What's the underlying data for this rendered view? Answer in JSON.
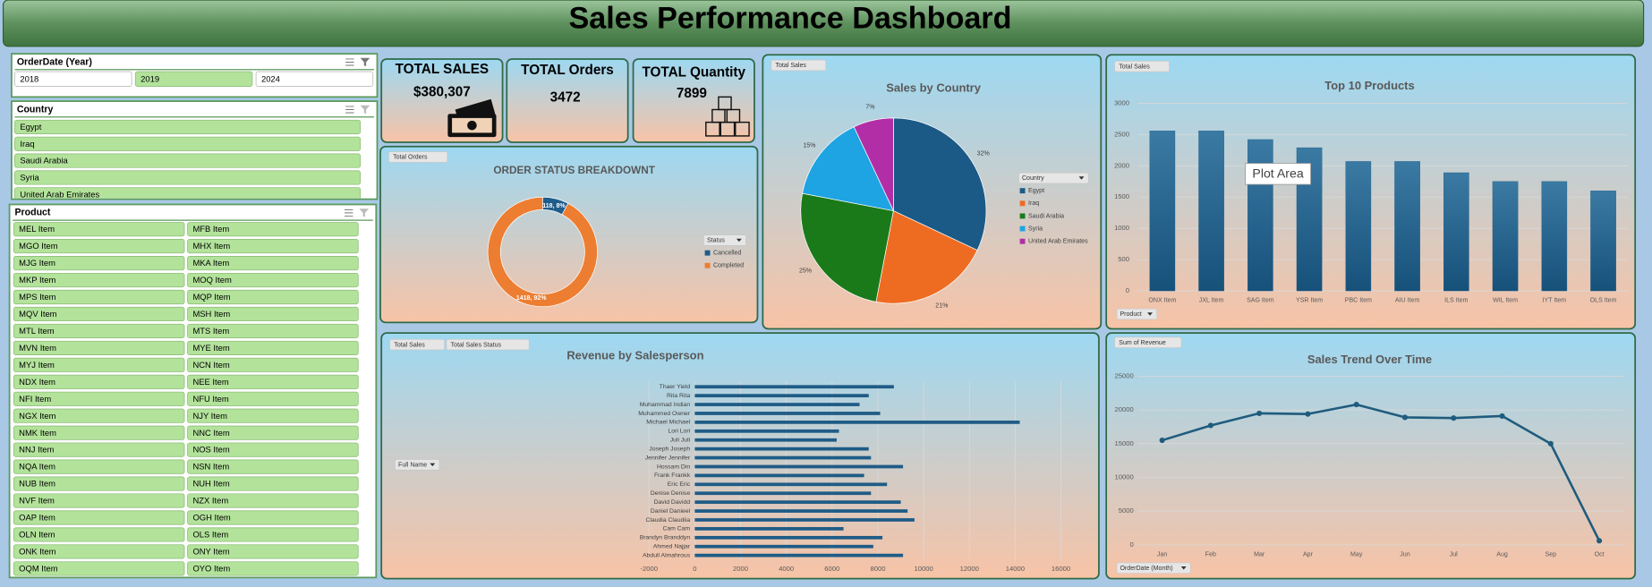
{
  "header": {
    "title": "Sales Performance Dashboard"
  },
  "slicers": [
    {
      "title": "OrderDate (Year)",
      "items": [
        "2018",
        "2019",
        "2024"
      ],
      "selected": [
        "2019"
      ]
    },
    {
      "title": "Country",
      "items": [
        "Egypt",
        "Iraq",
        "Saudi Arabia",
        "Syria",
        "United Arab Emirates"
      ]
    },
    {
      "title": "Product",
      "items": [
        "MEL Item",
        "MFB Item",
        "MGO Item",
        "MHX Item",
        "MJG Item",
        "MKA Item",
        "MKP Item",
        "MOQ Item",
        "MPS Item",
        "MQP Item",
        "MQV Item",
        "MSH Item",
        "MTL Item",
        "MTS Item",
        "MVN Item",
        "MYE Item",
        "MYJ Item",
        "NCN Item",
        "NDX Item",
        "NEE Item",
        "NFI Item",
        "NFU Item",
        "NGX Item",
        "NJY Item",
        "NMK Item",
        "NNC Item",
        "NNJ Item",
        "NOS Item",
        "NQA Item",
        "NSN Item",
        "NUB Item",
        "NUH Item",
        "NVF Item",
        "NZX Item",
        "OAP Item",
        "OGH Item",
        "OLN Item",
        "OLS Item",
        "ONK Item",
        "ONY Item",
        "OQM Item",
        "OYO Item"
      ]
    }
  ],
  "kpis": [
    {
      "label": "TOTAL SALES",
      "value": "$380,307"
    },
    {
      "label": "TOTAL Orders",
      "value": "3472"
    },
    {
      "label": "TOTAL Quantity",
      "value": "7899"
    }
  ],
  "chart_data": [
    {
      "type": "donut",
      "title": "ORDER STATUS BREAKDOWNT",
      "field_buttons": [
        "Total Orders"
      ],
      "legend_title": "Status",
      "categories": [
        "Cancelled",
        "Completed"
      ],
      "values": [
        118,
        1418
      ],
      "value_labels": [
        "118, 8%",
        "1418, 92%"
      ],
      "colors": [
        "#1f5c8b",
        "#ed7d31"
      ]
    },
    {
      "type": "pie",
      "title": "Sales by Country",
      "field_buttons": [
        "Total Sales"
      ],
      "legend_title": "Country",
      "categories": [
        "Egypt",
        "Iraq",
        "Saudi Arabia",
        "Syria",
        "United Arab Emirates"
      ],
      "values": [
        32,
        21,
        25,
        15,
        7
      ],
      "value_labels": [
        "32%",
        "21%",
        "25%",
        "15%",
        "7%"
      ],
      "colors": [
        "#1b5a86",
        "#ee6c22",
        "#1a7a1a",
        "#1ea3e3",
        "#b22ea6"
      ]
    },
    {
      "type": "bar",
      "title": "Top 10 Products",
      "field_buttons": [
        "Total Sales"
      ],
      "axis_button": "Product",
      "annotation": "Plot Area",
      "categories": [
        "ONX Item",
        "JXL Item",
        "SAG Item",
        "YSR Item",
        "PBC Item",
        "AIU Item",
        "ILS Item",
        "WIL Item",
        "IYT Item",
        "OLS Item"
      ],
      "values": [
        2560,
        2560,
        2420,
        2290,
        2070,
        2070,
        1890,
        1750,
        1750,
        1600
      ],
      "color": "#1f5c86",
      "ylim": [
        0,
        3000
      ],
      "yticks": [
        0,
        500,
        1000,
        1500,
        2000,
        2500,
        3000
      ],
      "grid": true
    },
    {
      "type": "bar",
      "orientation": "horizontal",
      "title": "Revenue by Salesperson",
      "field_buttons": [
        "Total Sales",
        "Total Sales Status"
      ],
      "axis_button": "Full Name",
      "categories": [
        "Thaer Yield",
        "Rita Rita",
        "Muhammad Indian",
        "Muhammed Owner",
        "Michael Michael",
        "Lori Lori",
        "Juli Juli",
        "Joseph Joseph",
        "Jennifer Jennifer",
        "Hossam Din",
        "Frank Frankk",
        "Eric Eric",
        "Denise Denise",
        "David Davidd",
        "Daniel Danieel",
        "Claudia Claudiia",
        "Cam Cam",
        "Brandyn Branddyn",
        "Ahmed Najjar",
        "Abdull Almahrous"
      ],
      "values": [
        8700,
        7600,
        7200,
        8100,
        14200,
        6300,
        6200,
        7600,
        7700,
        9100,
        7400,
        8400,
        7700,
        9000,
        9300,
        9600,
        6500,
        8200,
        7800,
        9100
      ],
      "color": "#1f5c86",
      "xlim": [
        -2000,
        16000
      ],
      "xticks": [
        -2000,
        0,
        2000,
        4000,
        6000,
        8000,
        10000,
        12000,
        14000,
        16000
      ],
      "grid": true
    },
    {
      "type": "line",
      "title": "Sales Trend Over Time",
      "field_buttons": [
        "Sum of Revenue"
      ],
      "axis_button": "OrderDate (Month)",
      "categories": [
        "Jan",
        "Feb",
        "Mar",
        "Apr",
        "May",
        "Jun",
        "Jul",
        "Aug",
        "Sep",
        "Oct"
      ],
      "values": [
        15500,
        17700,
        19500,
        19400,
        20800,
        18900,
        18800,
        19100,
        15000,
        600
      ],
      "color": "#1f5c7e",
      "ylim": [
        0,
        25000
      ],
      "yticks": [
        0,
        5000,
        10000,
        15000,
        20000,
        25000
      ],
      "grid": true
    }
  ]
}
